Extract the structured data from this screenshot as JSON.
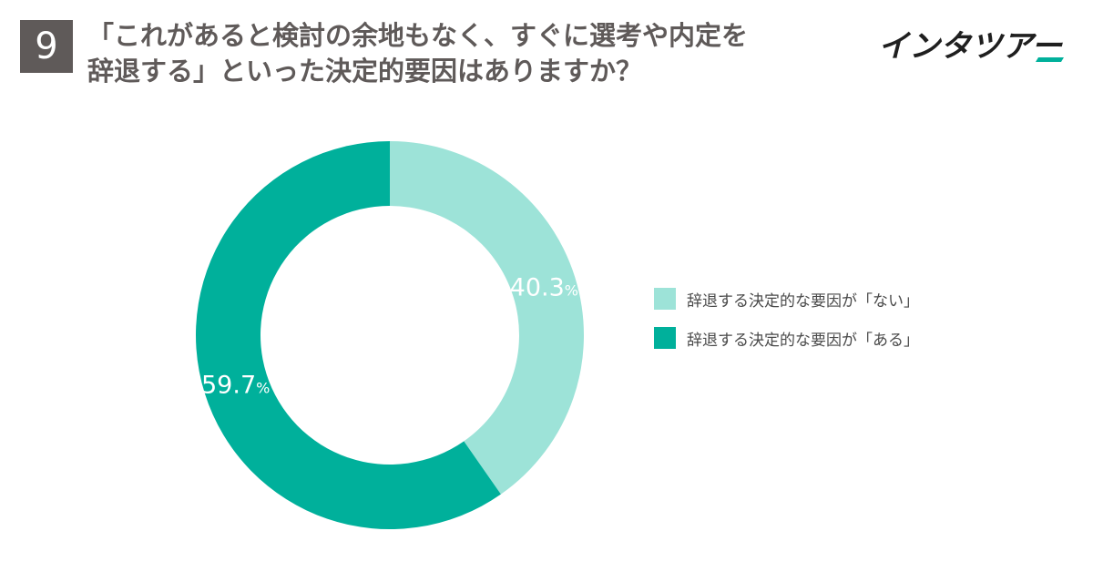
{
  "question_number": "9",
  "title_lines": [
    "「これがあると検討の余地もなく、すぐに選考や内定を",
    "辞退する」といった決定的要因はありますか？"
  ],
  "brand": "インタツアー",
  "colors": {
    "nai": "#9de3d8",
    "aru": "#00b09b",
    "label": "#ffffff",
    "badge": "#5f5a59"
  },
  "chart_data": {
    "type": "pie",
    "variant": "donut",
    "start": "top",
    "direction": "clockwise",
    "categories": [
      "辞退する決定的な要因が「ない」",
      "辞退する決定的な要因が「ある」"
    ],
    "values": [
      40.3,
      59.7
    ],
    "unit": "%",
    "legend_position": "right"
  }
}
